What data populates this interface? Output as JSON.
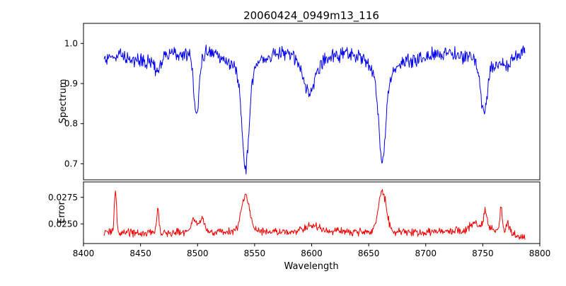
{
  "figure": {
    "background": "#ffffff"
  },
  "chart_data": {
    "type": "line",
    "title": "20060424_0949m13_116",
    "xlabel": "Wavelength",
    "grid": false,
    "legend": "none",
    "x_axis": {
      "min": 8400,
      "max": 8800,
      "ticks": [
        8400,
        8450,
        8500,
        8550,
        8600,
        8650,
        8700,
        8750,
        8800
      ]
    },
    "sampling": {
      "x_start": 8418,
      "x_end": 8787,
      "step": 0.5,
      "noise_seed": 20060424
    },
    "panels": [
      {
        "name": "spectrum",
        "ylabel": "Spectrum",
        "ylim": [
          0.66,
          1.05
        ],
        "yticks": [
          0.7,
          0.8,
          0.9,
          1.0
        ],
        "ytick_labels": [
          "0.7",
          "0.8",
          "0.9",
          "1.0"
        ],
        "line_color": "#0000ee",
        "noise_amp": 0.022,
        "base_points": [
          [
            8418,
            0.965
          ],
          [
            8430,
            0.975
          ],
          [
            8445,
            0.955
          ],
          [
            8460,
            0.955
          ],
          [
            8475,
            0.975
          ],
          [
            8490,
            0.975
          ],
          [
            8515,
            0.975
          ],
          [
            8530,
            0.965
          ],
          [
            8560,
            0.97
          ],
          [
            8575,
            0.975
          ],
          [
            8590,
            0.965
          ],
          [
            8610,
            0.96
          ],
          [
            8630,
            0.975
          ],
          [
            8645,
            0.965
          ],
          [
            8655,
            0.955
          ],
          [
            8680,
            0.955
          ],
          [
            8700,
            0.97
          ],
          [
            8720,
            0.98
          ],
          [
            8737,
            0.965
          ],
          [
            8760,
            0.95
          ],
          [
            8772,
            0.945
          ],
          [
            8787,
            0.985
          ]
        ],
        "gaussian_features": [
          {
            "center": 8465,
            "amp": -0.03,
            "sigma": 2.5
          },
          {
            "center": 8499,
            "amp": -0.15,
            "sigma": 2.2
          },
          {
            "center": 8542,
            "amp": -0.24,
            "sigma": 3.0
          },
          {
            "center": 8542,
            "amp": -0.04,
            "sigma": 10
          },
          {
            "center": 8598,
            "amp": -0.085,
            "sigma": 5
          },
          {
            "center": 8662,
            "amp": -0.21,
            "sigma": 3.0
          },
          {
            "center": 8662,
            "amp": -0.04,
            "sigma": 9
          },
          {
            "center": 8751,
            "amp": -0.125,
            "sigma": 3.0
          }
        ],
        "feature_minima": [
          {
            "x": 8499,
            "y": 0.82
          },
          {
            "x": 8542,
            "y": 0.69
          },
          {
            "x": 8598,
            "y": 0.88
          },
          {
            "x": 8662,
            "y": 0.71
          },
          {
            "x": 8751,
            "y": 0.83
          }
        ]
      },
      {
        "name": "error",
        "ylabel": "Error",
        "ylim": [
          0.02315,
          0.02895
        ],
        "yticks": [
          0.025,
          0.0275
        ],
        "ytick_labels": [
          "0.0250",
          "0.0275"
        ],
        "line_color": "#ee0000",
        "noise_amp": 0.00045,
        "base_points": [
          [
            8418,
            0.0241
          ],
          [
            8435,
            0.0242
          ],
          [
            8455,
            0.0241
          ],
          [
            8475,
            0.0242
          ],
          [
            8495,
            0.0243
          ],
          [
            8515,
            0.0242
          ],
          [
            8535,
            0.0243
          ],
          [
            8555,
            0.0243
          ],
          [
            8575,
            0.0242
          ],
          [
            8595,
            0.0245
          ],
          [
            8615,
            0.0244
          ],
          [
            8635,
            0.0242
          ],
          [
            8655,
            0.0243
          ],
          [
            8675,
            0.0242
          ],
          [
            8695,
            0.0242
          ],
          [
            8715,
            0.0243
          ],
          [
            8735,
            0.0244
          ],
          [
            8752,
            0.0246
          ],
          [
            8765,
            0.0244
          ],
          [
            8775,
            0.0241
          ],
          [
            8787,
            0.0236
          ]
        ],
        "gaussian_features": [
          {
            "center": 8428,
            "amp": 0.0037,
            "sigma": 1.0
          },
          {
            "center": 8465,
            "amp": 0.0021,
            "sigma": 1.0
          },
          {
            "center": 8497,
            "amp": 0.0013,
            "sigma": 2.5
          },
          {
            "center": 8504,
            "amp": 0.0011,
            "sigma": 2.0
          },
          {
            "center": 8542,
            "amp": 0.0034,
            "sigma": 3.5
          },
          {
            "center": 8600,
            "amp": 0.0004,
            "sigma": 5
          },
          {
            "center": 8662,
            "amp": 0.0038,
            "sigma": 3.5
          },
          {
            "center": 8742,
            "amp": 0.0006,
            "sigma": 3
          },
          {
            "center": 8752,
            "amp": 0.0016,
            "sigma": 1.5
          },
          {
            "center": 8766,
            "amp": 0.0024,
            "sigma": 1.0
          },
          {
            "center": 8772,
            "amp": 0.0008,
            "sigma": 1.5
          }
        ],
        "feature_maxima": [
          {
            "x": 8428,
            "y": 0.028
          },
          {
            "x": 8465,
            "y": 0.0262
          },
          {
            "x": 8542,
            "y": 0.028
          },
          {
            "x": 8662,
            "y": 0.0285
          },
          {
            "x": 8766,
            "y": 0.027
          }
        ]
      }
    ]
  }
}
